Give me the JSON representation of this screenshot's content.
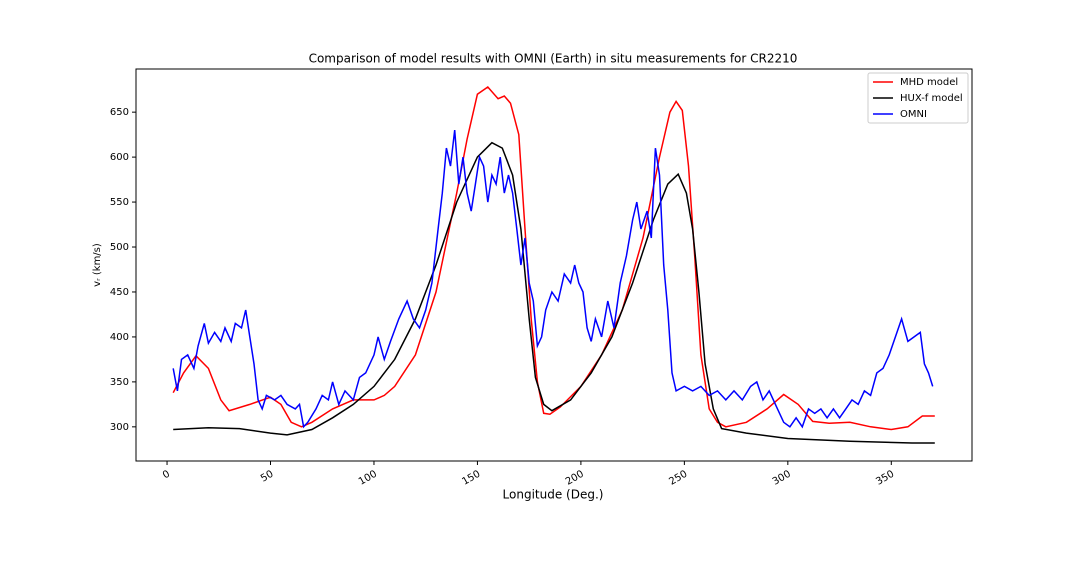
{
  "chart_data": {
    "type": "line",
    "title": "Comparison of model results with OMNI (Earth) in situ measurements for CR2210",
    "xlabel": "Longitude (Deg.)",
    "ylabel": "vᵣ (km/s)",
    "xlim": [
      -15,
      389
    ],
    "ylim": [
      262,
      698
    ],
    "xticks": [
      0,
      50,
      100,
      150,
      200,
      250,
      300,
      350
    ],
    "yticks": [
      300,
      350,
      400,
      450,
      500,
      550,
      600,
      650
    ],
    "legend": "upper right",
    "series": [
      {
        "name": "MHD model",
        "color": "#ff0000",
        "x": [
          3,
          8,
          14,
          20,
          26,
          30,
          40,
          50,
          55,
          60,
          65,
          70,
          80,
          90,
          100,
          105,
          110,
          120,
          130,
          140,
          145,
          150,
          155,
          160,
          163,
          166,
          170,
          173,
          176,
          179,
          182,
          185,
          190,
          200,
          210,
          220,
          230,
          238,
          243,
          246,
          249,
          252,
          255,
          258,
          262,
          266,
          270,
          280,
          290,
          298,
          305,
          312,
          320,
          330,
          340,
          350,
          358,
          365,
          371
        ],
        "values": [
          338,
          360,
          379,
          365,
          330,
          318,
          325,
          333,
          325,
          305,
          300,
          305,
          320,
          330,
          330,
          335,
          345,
          380,
          450,
          560,
          620,
          670,
          678,
          665,
          668,
          660,
          625,
          520,
          420,
          350,
          315,
          314,
          322,
          345,
          380,
          430,
          510,
          600,
          650,
          662,
          652,
          590,
          490,
          380,
          320,
          305,
          300,
          305,
          320,
          336,
          325,
          306,
          304,
          305,
          300,
          297,
          300,
          312,
          312
        ]
      },
      {
        "name": "HUX-f model",
        "color": "#000000",
        "x": [
          3,
          20,
          35,
          50,
          58,
          70,
          80,
          90,
          100,
          110,
          120,
          130,
          140,
          150,
          157,
          162,
          167,
          171,
          175,
          178,
          182,
          186,
          195,
          205,
          215,
          225,
          235,
          242,
          247,
          251,
          254,
          257,
          260,
          264,
          268,
          280,
          300,
          330,
          360,
          371
        ],
        "values": [
          297,
          299,
          298,
          293,
          291,
          297,
          310,
          325,
          345,
          375,
          420,
          480,
          550,
          600,
          616,
          610,
          580,
          520,
          420,
          355,
          325,
          318,
          330,
          360,
          400,
          460,
          530,
          570,
          581,
          560,
          520,
          450,
          370,
          320,
          298,
          293,
          287,
          284,
          282,
          282
        ]
      },
      {
        "name": "OMNI",
        "color": "#0000ff",
        "x": [
          3,
          5,
          7,
          10,
          13,
          15,
          18,
          20,
          23,
          26,
          28,
          31,
          33,
          36,
          38,
          40,
          42,
          44,
          46,
          48,
          52,
          55,
          58,
          62,
          64,
          66,
          68,
          72,
          75,
          78,
          80,
          83,
          86,
          90,
          93,
          96,
          100,
          102,
          105,
          108,
          112,
          116,
          119,
          122,
          125,
          128,
          131,
          133,
          135,
          137,
          139,
          141,
          143,
          145,
          147,
          149,
          151,
          153,
          155,
          157,
          159,
          161,
          163,
          165,
          167,
          169,
          171,
          173,
          175,
          177,
          179,
          181,
          183,
          186,
          189,
          192,
          195,
          197,
          199,
          201,
          203,
          205,
          207,
          210,
          213,
          216,
          219,
          222,
          225,
          227,
          229,
          232,
          234,
          236,
          238,
          240,
          242,
          244,
          246,
          250,
          254,
          258,
          262,
          266,
          270,
          274,
          278,
          282,
          285,
          288,
          291,
          295,
          298,
          301,
          304,
          307,
          310,
          313,
          316,
          319,
          322,
          325,
          328,
          331,
          334,
          337,
          340,
          343,
          346,
          349,
          352,
          355,
          358,
          361,
          364,
          366,
          368,
          370
        ],
        "values": [
          365,
          340,
          375,
          380,
          365,
          390,
          415,
          393,
          405,
          395,
          410,
          395,
          415,
          410,
          430,
          400,
          370,
          330,
          320,
          335,
          330,
          335,
          325,
          320,
          325,
          300,
          305,
          320,
          335,
          330,
          350,
          325,
          340,
          330,
          355,
          360,
          380,
          400,
          375,
          395,
          420,
          440,
          420,
          410,
          430,
          460,
          520,
          560,
          610,
          590,
          630,
          570,
          600,
          560,
          540,
          570,
          600,
          590,
          550,
          580,
          570,
          600,
          560,
          580,
          560,
          520,
          480,
          510,
          460,
          440,
          390,
          400,
          430,
          450,
          440,
          470,
          460,
          480,
          460,
          450,
          410,
          395,
          420,
          400,
          440,
          410,
          460,
          490,
          530,
          550,
          520,
          540,
          510,
          610,
          580,
          480,
          430,
          360,
          340,
          345,
          340,
          345,
          335,
          340,
          330,
          340,
          330,
          345,
          350,
          330,
          340,
          320,
          305,
          300,
          310,
          300,
          320,
          315,
          320,
          310,
          320,
          310,
          320,
          330,
          325,
          340,
          335,
          360,
          365,
          380,
          400,
          420,
          395,
          400,
          405,
          370,
          360,
          345
        ]
      }
    ]
  }
}
